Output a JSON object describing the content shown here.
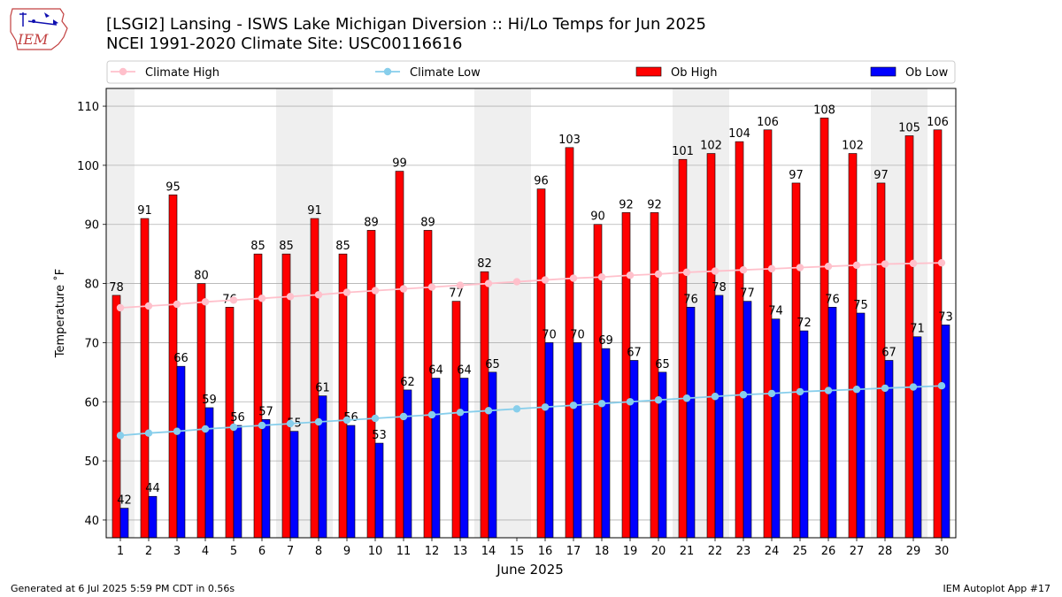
{
  "header": {
    "title": "[LSGI2] Lansing - ISWS Lake Michigan Diversion :: Hi/Lo Temps for Jun 2025",
    "subtitle": "NCEI 1991-2020 Climate Site: USC00116616",
    "logo_text": "IEM"
  },
  "footer": {
    "generated": "Generated at 6 Jul 2025 5:59 PM CDT in 0.56s",
    "app": "IEM Autoplot App #17"
  },
  "colors": {
    "ob_high": "#ff0000",
    "ob_low": "#0000ff",
    "climate_high": "#ffc0cb",
    "climate_low": "#87ceeb",
    "weekend_shade": "#efefef",
    "grid": "#b0b0b0"
  },
  "chart_data": {
    "type": "bar",
    "title": "[LSGI2] Lansing - ISWS Lake Michigan Diversion :: Hi/Lo Temps for Jun 2025",
    "subtitle": "NCEI 1991-2020 Climate Site: USC00116616",
    "xlabel": "June 2025",
    "ylabel": "Temperature $^\\circ$F",
    "ylabel_display": "Temperature ˚F",
    "ylim": [
      37,
      113
    ],
    "yticks": [
      40,
      50,
      60,
      70,
      80,
      90,
      100,
      110
    ],
    "grid": true,
    "legend_position": "top",
    "categories": [
      1,
      2,
      3,
      4,
      5,
      6,
      7,
      8,
      9,
      10,
      11,
      12,
      13,
      14,
      15,
      16,
      17,
      18,
      19,
      20,
      21,
      22,
      23,
      24,
      25,
      26,
      27,
      28,
      29,
      30
    ],
    "weekend_days": [
      1,
      7,
      8,
      14,
      15,
      21,
      22,
      28,
      29
    ],
    "series": [
      {
        "name": "Ob High",
        "kind": "bar",
        "values": [
          78,
          91,
          95,
          80,
          76,
          85,
          85,
          91,
          85,
          89,
          99,
          89,
          77,
          82,
          null,
          96,
          103,
          90,
          92,
          92,
          101,
          102,
          104,
          106,
          97,
          108,
          102,
          97,
          105,
          106
        ],
        "labels": [
          "78",
          "91",
          "95",
          "80",
          "76",
          "85",
          "85",
          "91",
          "85",
          "89",
          "99",
          "89",
          "77",
          "82",
          "",
          "96",
          "103",
          "90",
          "92",
          "92",
          "101",
          "102",
          "104",
          "106",
          "97",
          "108",
          "102",
          "97",
          "105",
          "106"
        ]
      },
      {
        "name": "Ob Low",
        "kind": "bar",
        "values": [
          42,
          44,
          66,
          59,
          56,
          57,
          55,
          61,
          56,
          53,
          62,
          64,
          64,
          65,
          null,
          70,
          70,
          69,
          67,
          65,
          76,
          78,
          77,
          74,
          72,
          76,
          75,
          67,
          71,
          73
        ],
        "labels": [
          "42",
          "44",
          "66",
          "59",
          "56",
          "57",
          "55",
          "61",
          "56",
          "53",
          "62",
          "64",
          "64",
          "65",
          "",
          "70",
          "70",
          "69",
          "67",
          "65",
          "76",
          "78",
          "77",
          "74",
          "72",
          "76",
          "75",
          "67",
          "71",
          "73"
        ]
      },
      {
        "name": "Climate High",
        "kind": "line",
        "values": [
          75.9,
          76.2,
          76.5,
          76.9,
          77.2,
          77.5,
          77.8,
          78.1,
          78.5,
          78.8,
          79.1,
          79.4,
          79.7,
          80.0,
          80.3,
          80.6,
          80.9,
          81.1,
          81.4,
          81.6,
          81.9,
          82.1,
          82.3,
          82.5,
          82.7,
          82.9,
          83.1,
          83.3,
          83.4,
          83.5
        ]
      },
      {
        "name": "Climate Low",
        "kind": "line",
        "values": [
          54.3,
          54.7,
          55.0,
          55.4,
          55.7,
          56.0,
          56.3,
          56.6,
          56.9,
          57.2,
          57.5,
          57.8,
          58.2,
          58.5,
          58.8,
          59.1,
          59.4,
          59.7,
          60.0,
          60.3,
          60.6,
          60.9,
          61.2,
          61.4,
          61.7,
          61.9,
          62.1,
          62.3,
          62.5,
          62.7
        ]
      }
    ]
  }
}
